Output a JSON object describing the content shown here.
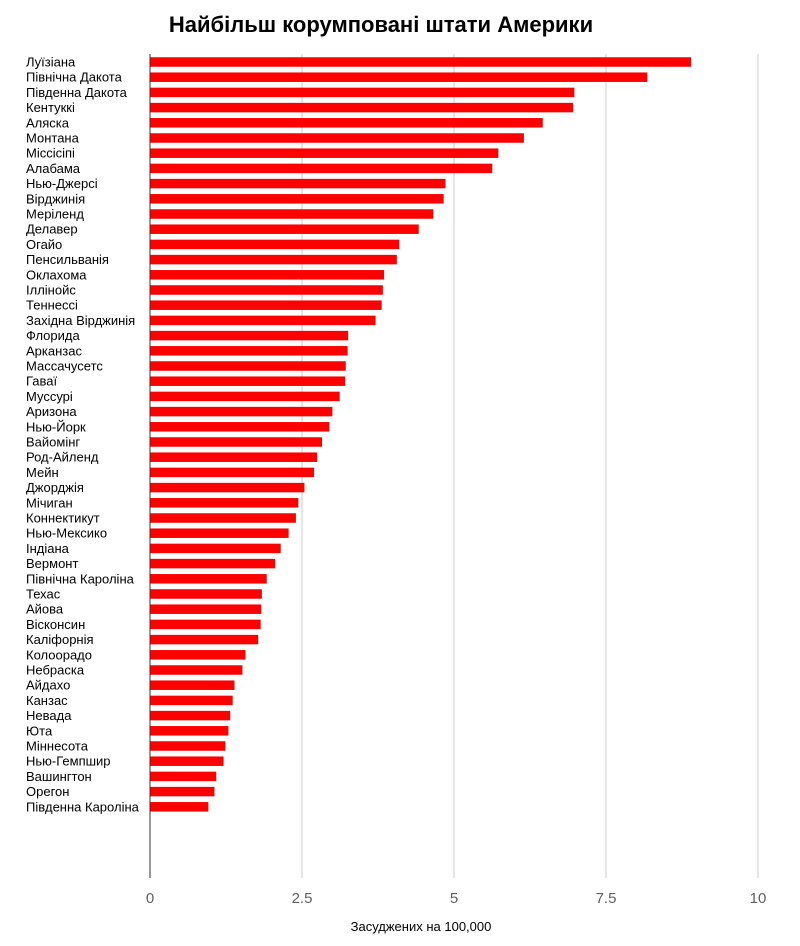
{
  "chart_data": {
    "type": "bar",
    "orientation": "horizontal",
    "title": "Найбільш корумповані штати Америки",
    "xlabel": "Засуджених на 100,000",
    "ylabel": "",
    "xlim": [
      0,
      10
    ],
    "x_ticks": [
      "0",
      "2.5",
      "5",
      "7.5",
      "10"
    ],
    "grid": true,
    "bar_color": "#ff0000",
    "categories": [
      "Луїзіана",
      "Північна Дакота",
      "Південна Дакота",
      "Кентуккі",
      "Аляска",
      "Монтана",
      "Міссісіпі",
      "Алабама",
      "Нью-Джерсі",
      "Вірджинія",
      "Меріленд",
      "Делавер",
      "Огайо",
      "Пенсильванія",
      "Оклахома",
      "Іллінойс",
      "Теннессі",
      "Західна Вірджинія",
      "Флорида",
      "Арканзас",
      "Массачусетс",
      "Гаваї",
      "Муссурі",
      "Аризона",
      "Нью-Йорк",
      "Вайомінг",
      "Род-Айленд",
      "Мейн",
      "Джорджія",
      "Мічиган",
      "Коннектикут",
      "Нью-Мексико",
      "Індіана",
      "Вермонт",
      "Північна Кароліна",
      "Техас",
      "Айова",
      "Вісконсин",
      "Каліфорнія",
      "Колоорадо",
      "Небраска",
      "Айдахо",
      "Канзас",
      "Невада",
      "Юта",
      "Міннесота",
      "Нью-Гемпшир",
      "Вашингтон",
      "Орегон",
      "Південна Кароліна"
    ],
    "values": [
      8.9,
      8.18,
      6.98,
      6.96,
      6.46,
      6.15,
      5.73,
      5.63,
      4.86,
      4.83,
      4.66,
      4.42,
      4.1,
      4.06,
      3.85,
      3.83,
      3.81,
      3.71,
      3.26,
      3.25,
      3.22,
      3.21,
      3.12,
      3.0,
      2.95,
      2.83,
      2.75,
      2.7,
      2.54,
      2.44,
      2.4,
      2.28,
      2.15,
      2.06,
      1.92,
      1.84,
      1.83,
      1.82,
      1.78,
      1.57,
      1.52,
      1.39,
      1.36,
      1.32,
      1.29,
      1.24,
      1.21,
      1.09,
      1.06,
      0.96
    ]
  }
}
